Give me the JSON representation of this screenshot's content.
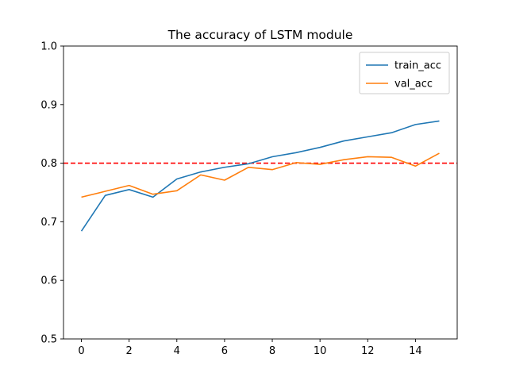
{
  "chart_data": {
    "type": "line",
    "title": "The accuracy of LSTM module",
    "xlabel": "",
    "ylabel": "",
    "xlim": [
      -0.75,
      15.75
    ],
    "ylim": [
      0.5,
      1.0
    ],
    "xticks": [
      0,
      2,
      4,
      6,
      8,
      10,
      12,
      14
    ],
    "yticks": [
      0.5,
      0.6,
      0.7,
      0.8,
      0.9,
      1.0
    ],
    "xtick_labels": [
      "0",
      "2",
      "4",
      "6",
      "8",
      "10",
      "12",
      "14"
    ],
    "ytick_labels": [
      "0.5",
      "0.6",
      "0.7",
      "0.8",
      "0.9",
      "1.0"
    ],
    "grid": false,
    "legend_position": "top-right",
    "x": [
      0,
      1,
      2,
      3,
      4,
      5,
      6,
      7,
      8,
      9,
      10,
      11,
      12,
      13,
      14,
      15
    ],
    "series": [
      {
        "name": "train_acc",
        "color": "#1f77b4",
        "values": [
          0.684,
          0.745,
          0.755,
          0.742,
          0.773,
          0.785,
          0.793,
          0.799,
          0.811,
          0.818,
          0.827,
          0.838,
          0.845,
          0.852,
          0.866,
          0.872
        ]
      },
      {
        "name": "val_acc",
        "color": "#ff7f0e",
        "values": [
          0.742,
          0.752,
          0.762,
          0.747,
          0.753,
          0.78,
          0.771,
          0.793,
          0.789,
          0.801,
          0.798,
          0.806,
          0.811,
          0.81,
          0.795,
          0.817
        ]
      }
    ],
    "reference_line": {
      "y": 0.8,
      "color": "#ff0000",
      "style": "dashed"
    }
  }
}
